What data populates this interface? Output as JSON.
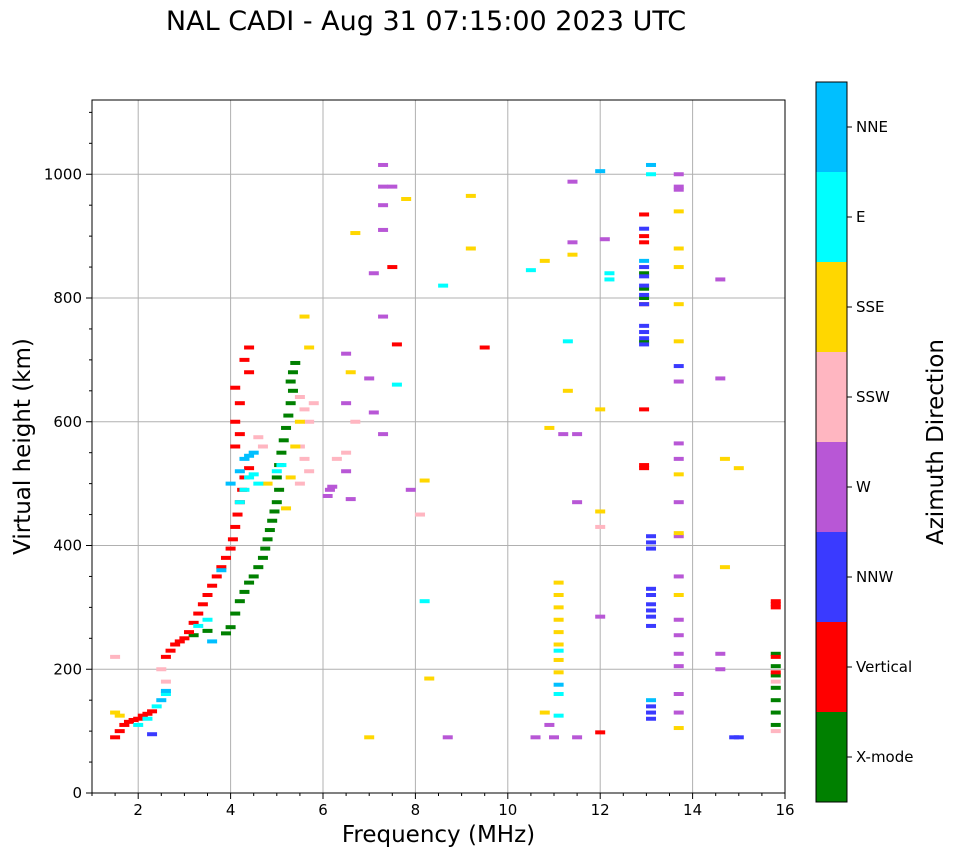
{
  "chart_data": {
    "type": "scatter",
    "title": "NAL CADI - Aug 31 07:15:00 2023 UTC",
    "xlabel": "Frequency (MHz)",
    "ylabel": "Virtual height (km)",
    "xlim": [
      1,
      16
    ],
    "ylim": [
      0,
      1120
    ],
    "xticks": [
      2,
      4,
      6,
      8,
      10,
      12,
      14,
      16
    ],
    "yticks": [
      0,
      200,
      400,
      600,
      800,
      1000
    ],
    "grid": true,
    "marker": "short horizontal dash",
    "colorbar": {
      "label": "Azimuth Direction",
      "position": "right",
      "categories": [
        {
          "name": "X-mode",
          "color": "#008000"
        },
        {
          "name": "Vertical",
          "color": "#ff0000"
        },
        {
          "name": "NNW",
          "color": "#3a3aff"
        },
        {
          "name": "W",
          "color": "#b857d6"
        },
        {
          "name": "SSW",
          "color": "#ffb6c1"
        },
        {
          "name": "SSE",
          "color": "#ffd700"
        },
        {
          "name": "E",
          "color": "#00ffff"
        },
        {
          "name": "NNE",
          "color": "#00bfff"
        }
      ]
    },
    "series": [
      {
        "name": "X-mode",
        "points": [
          [
            3.2,
            255
          ],
          [
            3.5,
            262
          ],
          [
            3.9,
            258
          ],
          [
            4.0,
            268
          ],
          [
            4.1,
            290
          ],
          [
            4.2,
            310
          ],
          [
            4.3,
            325
          ],
          [
            4.4,
            340
          ],
          [
            4.5,
            350
          ],
          [
            4.6,
            365
          ],
          [
            4.7,
            380
          ],
          [
            4.75,
            395
          ],
          [
            4.8,
            410
          ],
          [
            4.85,
            425
          ],
          [
            4.9,
            440
          ],
          [
            4.95,
            455
          ],
          [
            5.0,
            470
          ],
          [
            5.05,
            490
          ],
          [
            5.0,
            510
          ],
          [
            5.05,
            530
          ],
          [
            5.1,
            550
          ],
          [
            5.15,
            570
          ],
          [
            5.2,
            590
          ],
          [
            5.25,
            610
          ],
          [
            5.3,
            630
          ],
          [
            5.35,
            650
          ],
          [
            5.3,
            665
          ],
          [
            5.35,
            680
          ],
          [
            5.4,
            695
          ],
          [
            12.95,
            730
          ],
          [
            12.95,
            800
          ],
          [
            12.95,
            815
          ],
          [
            12.95,
            840
          ],
          [
            15.8,
            110
          ],
          [
            15.8,
            130
          ],
          [
            15.8,
            150
          ],
          [
            15.8,
            170
          ],
          [
            15.8,
            190
          ],
          [
            15.8,
            205
          ],
          [
            15.8,
            225
          ]
        ]
      },
      {
        "name": "Vertical",
        "points": [
          [
            1.5,
            90
          ],
          [
            1.6,
            100
          ],
          [
            1.7,
            110
          ],
          [
            1.8,
            115
          ],
          [
            1.9,
            118
          ],
          [
            2.0,
            120
          ],
          [
            2.1,
            125
          ],
          [
            2.2,
            128
          ],
          [
            2.3,
            132
          ],
          [
            2.6,
            220
          ],
          [
            2.7,
            230
          ],
          [
            2.8,
            240
          ],
          [
            2.9,
            245
          ],
          [
            3.0,
            250
          ],
          [
            3.1,
            260
          ],
          [
            3.2,
            275
          ],
          [
            3.3,
            290
          ],
          [
            3.4,
            305
          ],
          [
            3.5,
            320
          ],
          [
            3.6,
            335
          ],
          [
            3.7,
            350
          ],
          [
            3.8,
            365
          ],
          [
            3.9,
            380
          ],
          [
            4.0,
            395
          ],
          [
            4.05,
            410
          ],
          [
            4.1,
            430
          ],
          [
            4.15,
            450
          ],
          [
            4.2,
            470
          ],
          [
            4.25,
            490
          ],
          [
            4.3,
            510
          ],
          [
            4.4,
            525
          ],
          [
            4.1,
            560
          ],
          [
            4.2,
            580
          ],
          [
            4.1,
            600
          ],
          [
            4.2,
            630
          ],
          [
            4.1,
            655
          ],
          [
            4.4,
            680
          ],
          [
            4.3,
            700
          ],
          [
            4.4,
            720
          ],
          [
            9.5,
            720
          ],
          [
            12.95,
            525
          ],
          [
            12.95,
            530
          ],
          [
            12.95,
            620
          ],
          [
            12.95,
            790
          ],
          [
            12.95,
            890
          ],
          [
            12.95,
            900
          ],
          [
            12.95,
            935
          ],
          [
            12.0,
            98
          ],
          [
            7.5,
            850
          ],
          [
            7.6,
            725
          ],
          [
            15.8,
            300
          ],
          [
            15.8,
            305
          ],
          [
            15.8,
            310
          ],
          [
            15.8,
            220
          ],
          [
            15.8,
            195
          ]
        ]
      },
      {
        "name": "NNW",
        "points": [
          [
            2.3,
            95
          ],
          [
            12.95,
            725
          ],
          [
            12.95,
            735
          ],
          [
            12.95,
            745
          ],
          [
            12.95,
            755
          ],
          [
            12.95,
            790
          ],
          [
            12.95,
            805
          ],
          [
            12.95,
            820
          ],
          [
            12.95,
            835
          ],
          [
            12.95,
            850
          ],
          [
            12.95,
            912
          ],
          [
            13.1,
            120
          ],
          [
            13.1,
            130
          ],
          [
            13.1,
            140
          ],
          [
            13.1,
            270
          ],
          [
            13.1,
            285
          ],
          [
            13.1,
            295
          ],
          [
            13.1,
            305
          ],
          [
            13.1,
            320
          ],
          [
            13.1,
            330
          ],
          [
            13.1,
            395
          ],
          [
            13.1,
            405
          ],
          [
            13.1,
            415
          ],
          [
            14.9,
            90
          ],
          [
            15.0,
            90
          ],
          [
            13.7,
            690
          ]
        ]
      },
      {
        "name": "W",
        "points": [
          [
            6.1,
            480
          ],
          [
            6.15,
            490
          ],
          [
            6.2,
            495
          ],
          [
            6.5,
            630
          ],
          [
            6.6,
            475
          ],
          [
            6.5,
            710
          ],
          [
            6.5,
            520
          ],
          [
            7.3,
            1015
          ],
          [
            7.3,
            980
          ],
          [
            7.3,
            950
          ],
          [
            7.3,
            910
          ],
          [
            7.3,
            770
          ],
          [
            7.3,
            580
          ],
          [
            7.1,
            840
          ],
          [
            7.0,
            670
          ],
          [
            7.1,
            615
          ],
          [
            8.7,
            90
          ],
          [
            10.6,
            90
          ],
          [
            10.9,
            110
          ],
          [
            11.2,
            580
          ],
          [
            11.5,
            470
          ],
          [
            11.5,
            580
          ],
          [
            11.5,
            90
          ],
          [
            12.0,
            285
          ],
          [
            12.1,
            895
          ],
          [
            11.4,
            988
          ],
          [
            11.4,
            890
          ],
          [
            11.0,
            90
          ],
          [
            13.7,
            1000
          ],
          [
            13.7,
            980
          ],
          [
            13.7,
            975
          ],
          [
            13.7,
            665
          ],
          [
            13.7,
            565
          ],
          [
            13.7,
            540
          ],
          [
            13.7,
            470
          ],
          [
            13.7,
            415
          ],
          [
            13.7,
            350
          ],
          [
            13.7,
            280
          ],
          [
            13.7,
            255
          ],
          [
            13.7,
            225
          ],
          [
            13.7,
            205
          ],
          [
            13.7,
            160
          ],
          [
            13.7,
            130
          ],
          [
            14.6,
            830
          ],
          [
            14.6,
            670
          ],
          [
            14.6,
            225
          ],
          [
            14.6,
            200
          ],
          [
            7.5,
            980
          ],
          [
            7.9,
            490
          ]
        ]
      },
      {
        "name": "SSW",
        "points": [
          [
            1.5,
            220
          ],
          [
            2.5,
            200
          ],
          [
            2.6,
            180
          ],
          [
            4.6,
            575
          ],
          [
            4.7,
            560
          ],
          [
            5.5,
            640
          ],
          [
            5.6,
            620
          ],
          [
            5.7,
            600
          ],
          [
            5.8,
            630
          ],
          [
            5.5,
            560
          ],
          [
            5.6,
            540
          ],
          [
            5.7,
            520
          ],
          [
            5.5,
            500
          ],
          [
            6.3,
            540
          ],
          [
            6.5,
            550
          ],
          [
            6.7,
            600
          ],
          [
            8.1,
            450
          ],
          [
            12.0,
            430
          ],
          [
            15.8,
            100
          ],
          [
            15.8,
            180
          ]
        ]
      },
      {
        "name": "SSE",
        "points": [
          [
            1.5,
            130
          ],
          [
            1.6,
            125
          ],
          [
            4.8,
            500
          ],
          [
            5.2,
            460
          ],
          [
            5.3,
            510
          ],
          [
            5.4,
            560
          ],
          [
            5.5,
            600
          ],
          [
            5.7,
            720
          ],
          [
            5.6,
            770
          ],
          [
            6.6,
            680
          ],
          [
            6.7,
            905
          ],
          [
            7.0,
            90
          ],
          [
            7.8,
            960
          ],
          [
            8.2,
            505
          ],
          [
            8.3,
            185
          ],
          [
            9.2,
            965
          ],
          [
            9.2,
            880
          ],
          [
            10.8,
            860
          ],
          [
            10.8,
            130
          ],
          [
            10.9,
            590
          ],
          [
            11.1,
            340
          ],
          [
            11.1,
            320
          ],
          [
            11.1,
            300
          ],
          [
            11.1,
            280
          ],
          [
            11.1,
            260
          ],
          [
            11.1,
            240
          ],
          [
            11.1,
            215
          ],
          [
            11.1,
            195
          ],
          [
            11.3,
            650
          ],
          [
            11.4,
            870
          ],
          [
            12.0,
            620
          ],
          [
            12.0,
            455
          ],
          [
            13.7,
            940
          ],
          [
            13.7,
            880
          ],
          [
            13.7,
            850
          ],
          [
            13.7,
            790
          ],
          [
            13.7,
            730
          ],
          [
            13.7,
            515
          ],
          [
            13.7,
            420
          ],
          [
            13.7,
            320
          ],
          [
            13.7,
            105
          ],
          [
            14.7,
            540
          ],
          [
            14.7,
            365
          ],
          [
            15.0,
            525
          ]
        ]
      },
      {
        "name": "E",
        "points": [
          [
            2.0,
            110
          ],
          [
            2.2,
            120
          ],
          [
            2.4,
            140
          ],
          [
            2.6,
            160
          ],
          [
            3.3,
            270
          ],
          [
            3.5,
            280
          ],
          [
            4.2,
            470
          ],
          [
            4.3,
            490
          ],
          [
            4.4,
            510
          ],
          [
            4.5,
            515
          ],
          [
            4.6,
            500
          ],
          [
            5.0,
            520
          ],
          [
            5.1,
            530
          ],
          [
            7.6,
            660
          ],
          [
            8.2,
            310
          ],
          [
            8.6,
            820
          ],
          [
            10.5,
            845
          ],
          [
            11.1,
            230
          ],
          [
            11.1,
            160
          ],
          [
            11.1,
            125
          ],
          [
            11.3,
            730
          ],
          [
            12.2,
            840
          ],
          [
            12.2,
            830
          ],
          [
            13.1,
            1000
          ]
        ]
      },
      {
        "name": "NNE",
        "points": [
          [
            2.5,
            150
          ],
          [
            2.6,
            165
          ],
          [
            3.6,
            245
          ],
          [
            3.8,
            360
          ],
          [
            4.0,
            500
          ],
          [
            4.2,
            520
          ],
          [
            4.3,
            540
          ],
          [
            4.4,
            545
          ],
          [
            4.5,
            550
          ],
          [
            12.95,
            860
          ],
          [
            13.1,
            1015
          ],
          [
            12.0,
            1005
          ],
          [
            13.1,
            150
          ],
          [
            11.1,
            175
          ]
        ]
      }
    ]
  }
}
